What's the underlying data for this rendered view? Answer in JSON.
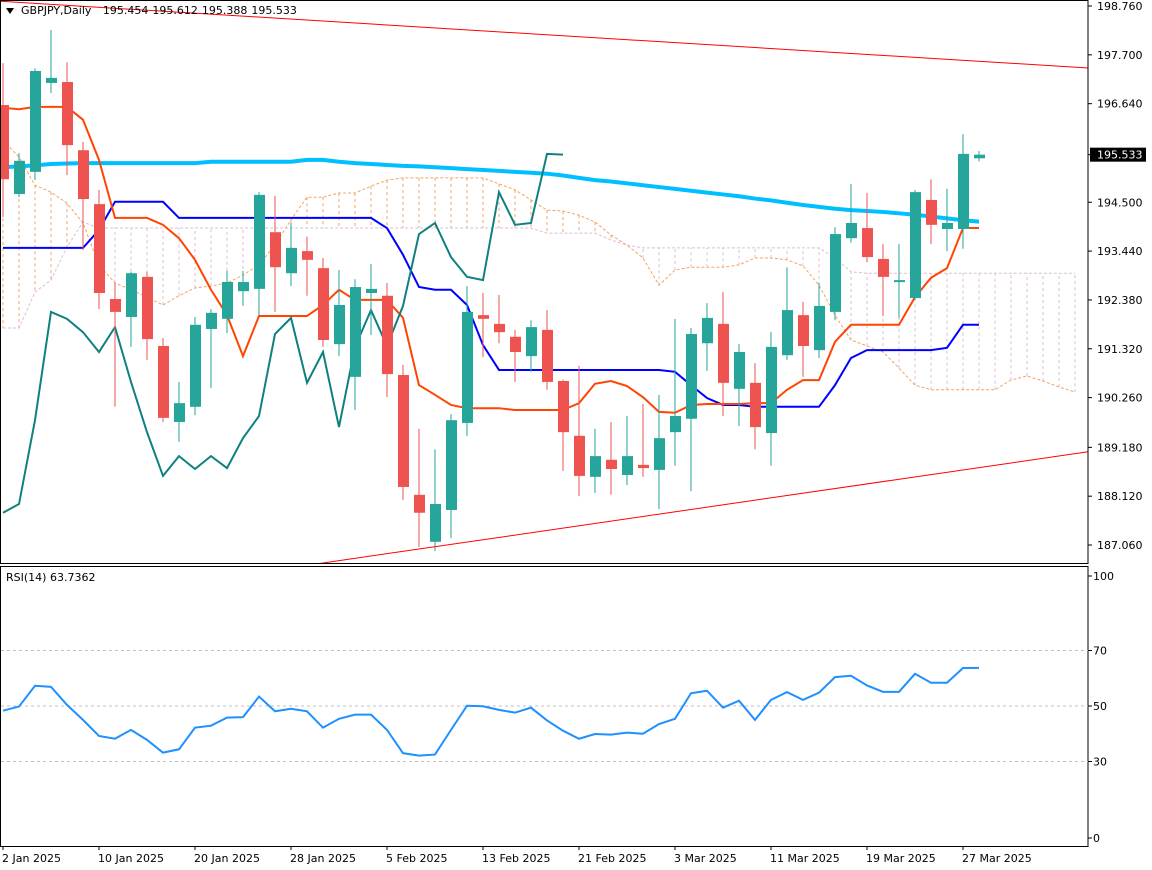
{
  "header": {
    "symbol_timeframe": "GBPJPY,Daily",
    "open": "195.454",
    "high": "195.612",
    "low": "195.388",
    "close": "195.533"
  },
  "rsi_header": {
    "label": "RSI(14)",
    "value": "63.7362"
  },
  "colors": {
    "bull": "#26a69a",
    "bear": "#ef5350",
    "tenkan": "#ff4500",
    "kijun": "#0000ff",
    "chikou": "#0f8080",
    "moving_average": "#00bfff",
    "span_a": "#f4a460",
    "span_b": "#d8bfd8",
    "trendline": "#ff0000",
    "rsi": "#1e90ff",
    "current_price_bg": "#000000"
  },
  "chart_data": [
    {
      "type": "candlestick",
      "symbol": "GBPJPY",
      "timeframe": "Daily",
      "ylim": [
        187.06,
        198.76
      ],
      "price_axis_labels": [
        "198.760",
        "197.700",
        "196.640",
        "195.533",
        "194.500",
        "193.440",
        "192.380",
        "191.320",
        "190.260",
        "189.180",
        "188.120",
        "187.060"
      ],
      "current_price": "195.533",
      "x_axis_labels": [
        {
          "bar": 0,
          "label": "2 Jan 2025"
        },
        {
          "bar": 6,
          "label": "10 Jan 2025"
        },
        {
          "bar": 12,
          "label": "20 Jan 2025"
        },
        {
          "bar": 18,
          "label": "28 Jan 2025"
        },
        {
          "bar": 24,
          "label": "5 Feb 2025"
        },
        {
          "bar": 30,
          "label": "13 Feb 2025"
        },
        {
          "bar": 36,
          "label": "21 Feb 2025"
        },
        {
          "bar": 42,
          "label": "3 Mar 2025"
        },
        {
          "bar": 48,
          "label": "11 Mar 2025"
        },
        {
          "bar": 54,
          "label": "19 Mar 2025"
        },
        {
          "bar": 60,
          "label": "27 Mar 2025"
        }
      ],
      "ohlc": [
        [
          196.61,
          197.52,
          194.18,
          195.0
        ],
        [
          194.68,
          195.57,
          194.61,
          195.4
        ],
        [
          195.16,
          197.41,
          194.98,
          197.35
        ],
        [
          197.09,
          198.24,
          196.87,
          197.2
        ],
        [
          197.11,
          197.54,
          195.09,
          195.74
        ],
        [
          195.63,
          195.81,
          193.46,
          194.57
        ],
        [
          194.46,
          194.77,
          192.18,
          192.53
        ],
        [
          192.4,
          192.75,
          190.06,
          192.12
        ],
        [
          192.01,
          192.99,
          191.36,
          192.96
        ],
        [
          192.88,
          192.99,
          191.08,
          191.53
        ],
        [
          191.38,
          191.55,
          189.73,
          189.82
        ],
        [
          189.73,
          190.6,
          189.3,
          190.14
        ],
        [
          190.06,
          192.01,
          189.88,
          191.84
        ],
        [
          191.75,
          192.18,
          190.47,
          192.1
        ],
        [
          191.97,
          193.01,
          191.66,
          192.77
        ],
        [
          192.57,
          193.01,
          192.25,
          192.77
        ],
        [
          192.62,
          194.72,
          192.05,
          194.66
        ],
        [
          193.85,
          194.64,
          192.12,
          193.09
        ],
        [
          192.96,
          194.05,
          192.68,
          193.51
        ],
        [
          193.44,
          193.75,
          192.47,
          193.25
        ],
        [
          193.07,
          193.29,
          191.36,
          191.51
        ],
        [
          191.42,
          193.03,
          191.16,
          192.27
        ],
        [
          190.71,
          192.83,
          189.99,
          192.66
        ],
        [
          192.53,
          193.16,
          191.62,
          192.62
        ],
        [
          192.47,
          192.75,
          190.27,
          190.77
        ],
        [
          190.75,
          190.97,
          188.04,
          188.32
        ],
        [
          188.15,
          189.58,
          187.02,
          187.76
        ],
        [
          187.13,
          189.14,
          186.93,
          187.95
        ],
        [
          187.82,
          189.9,
          187.21,
          189.77
        ],
        [
          189.71,
          192.68,
          189.43,
          192.12
        ],
        [
          192.05,
          192.53,
          191.14,
          191.97
        ],
        [
          191.86,
          192.49,
          191.44,
          191.68
        ],
        [
          191.58,
          191.73,
          190.6,
          191.25
        ],
        [
          191.16,
          191.94,
          190.82,
          191.79
        ],
        [
          191.73,
          192.16,
          190.43,
          190.6
        ],
        [
          190.62,
          190.65,
          188.67,
          189.51
        ],
        [
          189.43,
          190.95,
          188.12,
          188.56
        ],
        [
          188.54,
          189.58,
          188.19,
          188.99
        ],
        [
          188.91,
          189.73,
          188.15,
          188.71
        ],
        [
          188.58,
          189.86,
          188.36,
          188.99
        ],
        [
          188.8,
          190.12,
          188.54,
          188.73
        ],
        [
          188.69,
          190.32,
          187.84,
          189.38
        ],
        [
          189.51,
          191.97,
          188.78,
          189.86
        ],
        [
          189.8,
          191.77,
          188.23,
          191.64
        ],
        [
          191.44,
          192.31,
          190.84,
          191.99
        ],
        [
          191.86,
          192.55,
          189.86,
          190.58
        ],
        [
          190.45,
          191.42,
          189.64,
          191.25
        ],
        [
          190.58,
          191.01,
          189.14,
          189.62
        ],
        [
          189.49,
          191.68,
          188.78,
          191.36
        ],
        [
          191.18,
          193.09,
          191.08,
          192.16
        ],
        [
          192.05,
          192.34,
          190.71,
          191.38
        ],
        [
          191.29,
          192.75,
          191.12,
          192.25
        ],
        [
          192.12,
          193.96,
          191.94,
          193.81
        ],
        [
          193.72,
          194.9,
          193.62,
          194.05
        ],
        [
          193.94,
          194.7,
          193.2,
          193.31
        ],
        [
          193.27,
          193.59,
          192.03,
          192.88
        ],
        [
          192.77,
          193.59,
          191.99,
          192.81
        ],
        [
          192.42,
          194.77,
          192.38,
          194.72
        ],
        [
          194.55,
          195.0,
          193.59,
          194.01
        ],
        [
          193.92,
          194.79,
          193.44,
          194.05
        ],
        [
          193.92,
          195.98,
          193.49,
          195.55
        ],
        [
          195.454,
          195.612,
          195.388,
          195.533
        ]
      ],
      "moving_average": [
        195.26,
        195.28,
        195.3,
        195.33,
        195.34,
        195.35,
        195.35,
        195.35,
        195.35,
        195.35,
        195.35,
        195.35,
        195.35,
        195.38,
        195.38,
        195.38,
        195.38,
        195.38,
        195.38,
        195.42,
        195.42,
        195.38,
        195.35,
        195.33,
        195.31,
        195.29,
        195.28,
        195.26,
        195.24,
        195.22,
        195.2,
        195.18,
        195.16,
        195.14,
        195.12,
        195.08,
        195.03,
        194.98,
        194.95,
        194.91,
        194.87,
        194.83,
        194.79,
        194.75,
        194.71,
        194.67,
        194.63,
        194.58,
        194.54,
        194.49,
        194.44,
        194.4,
        194.36,
        194.33,
        194.31,
        194.29,
        194.26,
        194.23,
        194.19,
        194.15,
        194.11,
        194.08
      ],
      "ichimoku": {
        "tenkan": [
          196.55,
          196.52,
          196.57,
          196.57,
          196.57,
          196.29,
          195.42,
          194.16,
          194.16,
          194.16,
          194.01,
          193.72,
          193.25,
          192.6,
          192.05,
          191.16,
          192.03,
          192.03,
          192.03,
          192.03,
          192.27,
          192.6,
          192.38,
          192.38,
          192.38,
          191.99,
          190.53,
          190.32,
          190.1,
          190.03,
          190.03,
          190.03,
          189.99,
          189.99,
          189.99,
          189.99,
          190.14,
          190.56,
          190.62,
          190.51,
          190.27,
          189.95,
          189.93,
          190.1,
          190.12,
          190.12,
          190.12,
          190.14,
          190.14,
          190.43,
          190.64,
          190.64,
          191.47,
          191.84,
          191.84,
          191.84,
          191.84,
          192.44,
          192.86,
          193.07,
          193.94,
          193.94
        ],
        "kijun": [
          193.51,
          193.51,
          193.51,
          193.51,
          193.51,
          193.51,
          193.9,
          194.51,
          194.51,
          194.51,
          194.51,
          194.16,
          194.16,
          194.16,
          194.16,
          194.16,
          194.16,
          194.16,
          194.16,
          194.16,
          194.16,
          194.16,
          194.16,
          194.16,
          193.94,
          193.36,
          192.66,
          192.6,
          192.6,
          192.27,
          191.4,
          190.86,
          190.86,
          190.86,
          190.86,
          190.86,
          190.86,
          190.86,
          190.86,
          190.86,
          190.86,
          190.86,
          190.82,
          190.53,
          190.25,
          190.1,
          190.1,
          190.06,
          190.06,
          190.06,
          190.06,
          190.06,
          190.53,
          191.12,
          191.29,
          191.29,
          191.29,
          191.29,
          191.29,
          191.34,
          191.84,
          191.84
        ],
        "span_a": [
          195.85,
          195.48,
          194.87,
          194.72,
          194.48,
          194.05,
          193.14,
          192.75,
          192.6,
          192.44,
          192.27,
          192.47,
          192.64,
          192.68,
          192.75,
          192.92,
          193.14,
          193.57,
          194.12,
          194.61,
          194.61,
          194.7,
          194.7,
          194.85,
          194.98,
          195.03,
          195.03,
          195.03,
          195.03,
          195.03,
          195.03,
          194.9,
          194.77,
          194.55,
          194.33,
          194.31,
          194.22,
          194.07,
          193.79,
          193.57,
          193.29,
          192.7,
          193.03,
          193.09,
          193.09,
          193.09,
          193.14,
          193.29,
          193.29,
          193.25,
          193.12,
          192.7,
          192.05,
          191.51,
          191.38,
          191.25,
          190.9,
          190.53,
          190.43,
          190.43,
          190.43,
          190.43,
          190.43,
          190.64,
          190.73,
          190.62,
          190.49,
          190.38
        ],
        "span_b": [
          191.77,
          191.77,
          192.55,
          192.81,
          193.53,
          194.07,
          193.94,
          193.94,
          193.94,
          193.94,
          193.94,
          193.94,
          193.94,
          193.94,
          193.94,
          193.94,
          193.94,
          193.94,
          193.94,
          193.94,
          193.94,
          193.94,
          193.94,
          193.94,
          193.94,
          193.94,
          193.94,
          193.94,
          193.94,
          193.94,
          193.94,
          193.94,
          193.94,
          193.94,
          193.83,
          193.83,
          193.83,
          193.83,
          193.68,
          193.57,
          193.51,
          193.51,
          193.51,
          193.51,
          193.51,
          193.51,
          193.51,
          193.51,
          193.51,
          193.51,
          193.51,
          193.51,
          193.29,
          192.99,
          192.96,
          192.96,
          192.96,
          192.96,
          192.96,
          192.96,
          192.96,
          192.96,
          192.96,
          192.96,
          192.96,
          192.96,
          192.96,
          192.96
        ]
      },
      "trendlines": [
        {
          "points": [
            {
              "bar": 0,
              "price": 198.86
            },
            {
              "bar": 61,
              "price": 197.56
            }
          ]
        },
        {
          "points": [
            {
              "bar": 20,
              "price": 186.67
            },
            {
              "bar": 61,
              "price": 188.74
            }
          ]
        }
      ]
    },
    {
      "type": "line",
      "indicator": "RSI(14)",
      "ylim": [
        0,
        100
      ],
      "levels": [
        70,
        50,
        30
      ],
      "axis_labels": [
        "100",
        "70",
        "50",
        "30",
        "0"
      ],
      "values": [
        48.3,
        49.8,
        57.3,
        56.9,
        50.4,
        45.0,
        39.2,
        38.2,
        41.4,
        37.8,
        33.2,
        34.4,
        42.2,
        42.9,
        45.8,
        46.0,
        53.4,
        48.1,
        49.0,
        48.1,
        42.2,
        45.4,
        46.9,
        46.9,
        41.4,
        33.0,
        32.1,
        32.5,
        41.4,
        50.1,
        49.9,
        48.6,
        47.6,
        49.4,
        44.8,
        41.1,
        38.2,
        39.9,
        39.7,
        40.4,
        40.0,
        43.5,
        45.4,
        54.6,
        55.5,
        49.4,
        51.9,
        45.0,
        52.2,
        55.0,
        52.2,
        54.8,
        60.4,
        60.9,
        57.4,
        55.1,
        55.1,
        61.6,
        58.4,
        58.4,
        63.7,
        63.7362
      ]
    }
  ]
}
